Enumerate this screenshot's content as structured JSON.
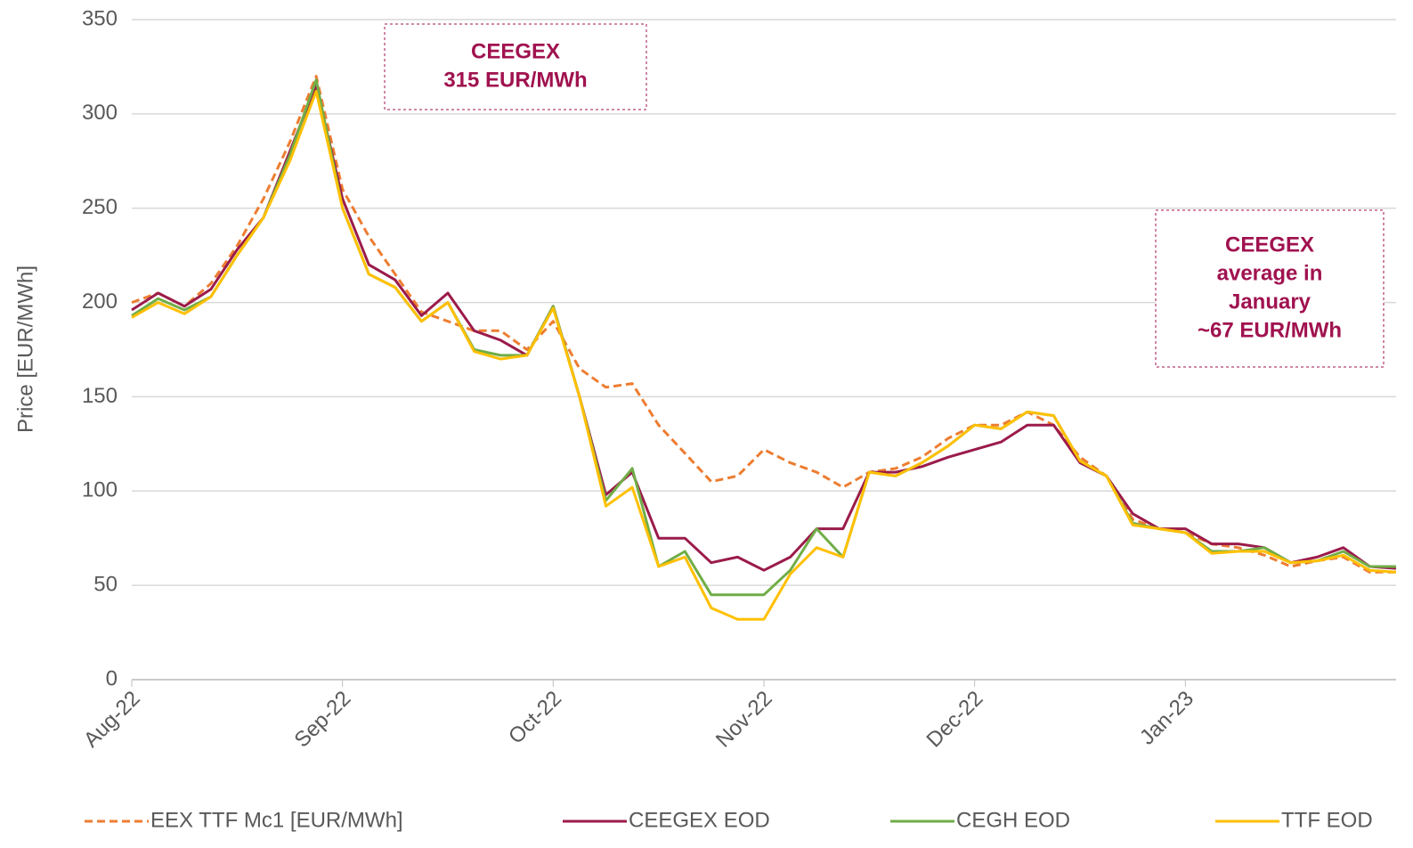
{
  "chart_data": {
    "type": "line",
    "y_label": "Price [EUR/MWh]",
    "categories": [
      "Aug-22",
      null,
      null,
      null,
      null,
      null,
      null,
      null,
      "Sep-22",
      null,
      null,
      null,
      null,
      null,
      null,
      null,
      "Oct-22",
      null,
      null,
      null,
      null,
      null,
      null,
      null,
      "Nov-22",
      null,
      null,
      null,
      null,
      null,
      null,
      null,
      "Dec-22",
      null,
      null,
      null,
      null,
      null,
      null,
      null,
      "Jan-23",
      null,
      null,
      null,
      null,
      null,
      null,
      null,
      null
    ],
    "series": [
      {
        "name": "EEX TTF Mc1 [EUR/MWh]",
        "color": "#ed7d31",
        "dashed": true,
        "values": [
          200,
          205,
          198,
          210,
          230,
          255,
          285,
          320,
          260,
          235,
          215,
          195,
          190,
          185,
          185,
          175,
          190,
          165,
          155,
          157,
          135,
          120,
          105,
          108,
          122,
          115,
          110,
          102,
          110,
          112,
          118,
          128,
          135,
          135,
          142,
          135,
          118,
          108,
          85,
          80,
          78,
          72,
          70,
          66,
          60,
          63,
          65,
          57,
          57
        ]
      },
      {
        "name": "CEEGEX EOD",
        "color": "#9b1b4b",
        "dashed": false,
        "values": [
          196,
          205,
          198,
          207,
          228,
          245,
          280,
          315,
          255,
          220,
          212,
          193,
          205,
          185,
          180,
          172,
          198,
          150,
          98,
          110,
          75,
          75,
          62,
          65,
          58,
          65,
          80,
          80,
          110,
          110,
          113,
          118,
          122,
          126,
          135,
          135,
          115,
          108,
          88,
          80,
          80,
          72,
          72,
          70,
          62,
          65,
          70,
          60,
          59
        ]
      },
      {
        "name": "CEGH EOD",
        "color": "#70ad47",
        "dashed": false,
        "values": [
          193,
          202,
          196,
          203,
          225,
          245,
          278,
          318,
          250,
          215,
          208,
          190,
          200,
          175,
          172,
          172,
          198,
          150,
          95,
          112,
          60,
          68,
          45,
          45,
          45,
          58,
          80,
          65,
          110,
          108,
          115,
          124,
          135,
          133,
          142,
          140,
          116,
          108,
          83,
          80,
          78,
          68,
          68,
          70,
          62,
          63,
          68,
          60,
          60
        ]
      },
      {
        "name": "TTF EOD",
        "color": "#ffc000",
        "dashed": false,
        "values": [
          192,
          200,
          194,
          203,
          225,
          245,
          275,
          312,
          250,
          215,
          208,
          190,
          200,
          174,
          170,
          172,
          197,
          150,
          92,
          102,
          60,
          65,
          38,
          32,
          32,
          56,
          70,
          65,
          110,
          108,
          115,
          124,
          135,
          133,
          142,
          140,
          116,
          108,
          82,
          80,
          78,
          67,
          68,
          68,
          62,
          63,
          66,
          58,
          57
        ]
      }
    ],
    "ylim": [
      0,
      350
    ],
    "yticks": [
      0,
      50,
      100,
      150,
      200,
      250,
      300,
      350
    ],
    "grid": true,
    "legend": "bottom",
    "annotations": [
      {
        "lines": [
          "CEEGEX",
          "315 EUR/MWh"
        ]
      },
      {
        "lines": [
          "CEEGEX",
          "average in",
          "January",
          "~67 EUR/MWh"
        ]
      }
    ]
  }
}
